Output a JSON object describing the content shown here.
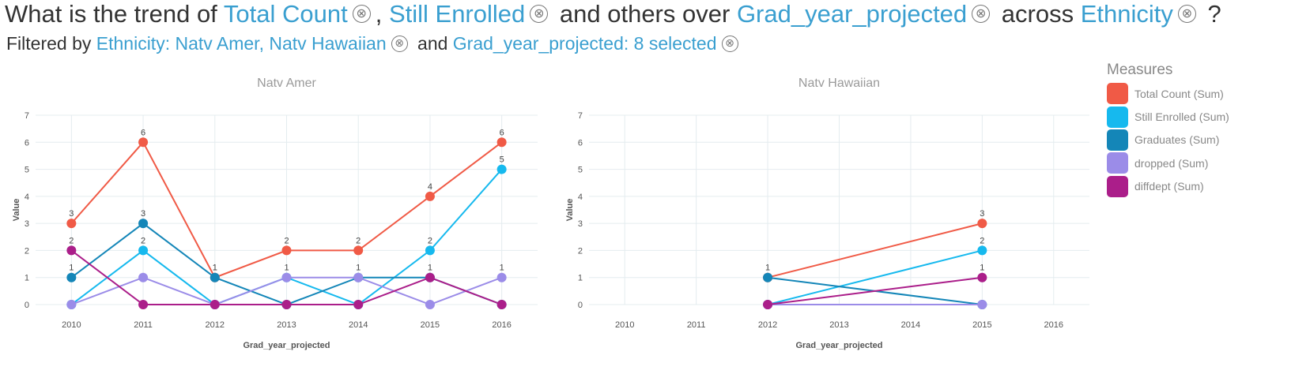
{
  "query": {
    "prefix": "What is the trend of",
    "measure1": "Total Count",
    "sep": ",",
    "measure2": "Still Enrolled",
    "middle": "and others over",
    "dimension": "Grad_year_projected",
    "across_word": "across",
    "breakdown": "Ethnicity",
    "suffix": "?",
    "clear_glyph": "⊗"
  },
  "filters": {
    "prefix": "Filtered by",
    "filter1": "Ethnicity: Natv Amer, Natv Hawaiian",
    "and_word": "and",
    "filter2": "Grad_year_projected: 8 selected"
  },
  "legend": {
    "title": "Measures",
    "items": [
      {
        "label": "Total Count (Sum)",
        "color": "#f05a46"
      },
      {
        "label": "Still Enrolled (Sum)",
        "color": "#16b9ee"
      },
      {
        "label": "Graduates (Sum)",
        "color": "#1486b8"
      },
      {
        "label": "dropped (Sum)",
        "color": "#9b8ce8"
      },
      {
        "label": "diffdept (Sum)",
        "color": "#ab1e8a"
      }
    ]
  },
  "chart_data": [
    {
      "type": "line",
      "title": "Natv Amer",
      "xlabel": "Grad_year_projected",
      "ylabel": "Value",
      "x": [
        2010,
        2011,
        2012,
        2013,
        2014,
        2015,
        2016
      ],
      "ylim": [
        0,
        7
      ],
      "yticks": [
        0,
        1,
        2,
        3,
        4,
        5,
        6,
        7
      ],
      "grid": true,
      "series": [
        {
          "name": "Total Count (Sum)",
          "color": "#f05a46",
          "values": [
            3,
            6,
            1,
            2,
            2,
            4,
            6
          ],
          "labels": [
            "3",
            "6",
            "1",
            "2",
            "2",
            "4",
            "6"
          ]
        },
        {
          "name": "Still Enrolled (Sum)",
          "color": "#16b9ee",
          "values": [
            0,
            2,
            0,
            1,
            0,
            2,
            5
          ],
          "labels": [
            "",
            "2",
            "",
            "",
            "",
            "2",
            "5"
          ]
        },
        {
          "name": "Graduates (Sum)",
          "color": "#1486b8",
          "values": [
            1,
            3,
            1,
            0,
            1,
            1,
            0
          ],
          "labels": [
            "1",
            "3",
            "1",
            "",
            "1",
            "",
            ""
          ]
        },
        {
          "name": "dropped (Sum)",
          "color": "#9b8ce8",
          "values": [
            0,
            1,
            0,
            1,
            1,
            0,
            1
          ],
          "labels": [
            "",
            "",
            "",
            "1",
            "",
            "",
            "1"
          ]
        },
        {
          "name": "diffdept (Sum)",
          "color": "#ab1e8a",
          "values": [
            2,
            0,
            0,
            0,
            0,
            1,
            0
          ],
          "labels": [
            "2",
            "",
            "",
            "",
            "",
            "1",
            ""
          ]
        }
      ]
    },
    {
      "type": "line",
      "title": "Natv Hawaiian",
      "xlabel": "Grad_year_projected",
      "ylabel": "Value",
      "x": [
        2010,
        2011,
        2012,
        2013,
        2014,
        2015,
        2016
      ],
      "ylim": [
        0,
        7
      ],
      "yticks": [
        0,
        1,
        2,
        3,
        4,
        5,
        6,
        7
      ],
      "grid": true,
      "series": [
        {
          "name": "Total Count (Sum)",
          "color": "#f05a46",
          "values": [
            null,
            null,
            1,
            null,
            null,
            3,
            null
          ],
          "labels": [
            "",
            "",
            "",
            "",
            "",
            "3",
            ""
          ]
        },
        {
          "name": "Still Enrolled (Sum)",
          "color": "#16b9ee",
          "values": [
            null,
            null,
            0,
            null,
            null,
            2,
            null
          ],
          "labels": [
            "",
            "",
            "",
            "",
            "",
            "2",
            ""
          ]
        },
        {
          "name": "Graduates (Sum)",
          "color": "#1486b8",
          "values": [
            null,
            null,
            1,
            null,
            null,
            0,
            null
          ],
          "labels": [
            "",
            "",
            "1",
            "",
            "",
            "",
            ""
          ]
        },
        {
          "name": "dropped (Sum)",
          "color": "#9b8ce8",
          "values": [
            null,
            null,
            0,
            null,
            null,
            0,
            null
          ],
          "labels": [
            "",
            "",
            "",
            "",
            "",
            "",
            ""
          ]
        },
        {
          "name": "diffdept (Sum)",
          "color": "#ab1e8a",
          "values": [
            null,
            null,
            0,
            null,
            null,
            1,
            null
          ],
          "labels": [
            "",
            "",
            "",
            "",
            "",
            "1",
            ""
          ]
        }
      ]
    }
  ]
}
